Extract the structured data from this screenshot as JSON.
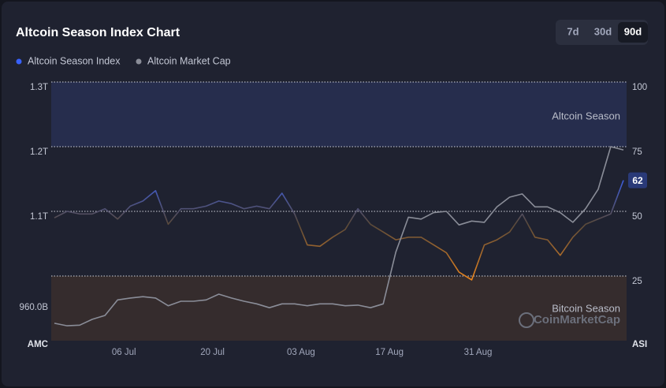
{
  "chart_data": {
    "type": "line",
    "title": "Altcoin Season Index Chart",
    "ranges": [
      "7d",
      "30d",
      "90d"
    ],
    "active_range": 2,
    "watermark": "CoinMarketCap",
    "y_axis_title": "AMC",
    "y2_axis_title": "ASI",
    "x": [
      0,
      2,
      4,
      6,
      8,
      10,
      12,
      14,
      16,
      18,
      20,
      22,
      24,
      26,
      28,
      30,
      32,
      34,
      36,
      38,
      40,
      42,
      44,
      46,
      48,
      50,
      52,
      54,
      56,
      58,
      60,
      62,
      64,
      66,
      68,
      70,
      72,
      74,
      76,
      78,
      80,
      82,
      84,
      86,
      88,
      90
    ],
    "xlim": [
      -0.5,
      90.5
    ],
    "xticks": [
      {
        "value": 11,
        "label": "06 Jul"
      },
      {
        "value": 25,
        "label": "20 Jul"
      },
      {
        "value": 39,
        "label": "03 Aug"
      },
      {
        "value": 53,
        "label": "17 Aug"
      },
      {
        "value": 67,
        "label": "31 Aug"
      }
    ],
    "ylim": [
      0.9,
      1.3
    ],
    "yticks": [
      {
        "value": 1.3,
        "label": "1.3T"
      },
      {
        "value": 1.2,
        "label": "1.2T"
      },
      {
        "value": 1.1,
        "label": "1.1T"
      },
      {
        "value": 0.96,
        "label": "960.0B"
      }
    ],
    "y2lim": [
      0,
      100
    ],
    "y2ticks": [
      100,
      75,
      50,
      25
    ],
    "bands": [
      {
        "label": "Altcoin Season",
        "from": 75,
        "to": 100,
        "color": "#262d4d"
      },
      {
        "label": "Bitcoin Season",
        "from": 0,
        "to": 25,
        "color": "#352c2d"
      }
    ],
    "series": [
      {
        "name": "Altcoin Season Index",
        "color": "#3861fb",
        "low_color": "#f68a1b",
        "axis": "y2",
        "values": [
          47.5,
          50,
          49,
          49,
          51,
          47,
          52,
          54,
          58,
          45,
          51,
          51,
          52,
          54,
          53,
          51,
          52,
          51,
          57,
          49,
          37,
          36.5,
          40,
          43,
          51,
          45,
          42,
          39,
          40,
          40,
          37,
          34,
          26.5,
          23.5,
          37,
          39,
          42,
          49,
          40,
          39,
          33,
          40,
          45,
          47,
          49,
          62
        ]
      },
      {
        "name": "Altcoin Market Cap",
        "color": "#8a8d98",
        "values": [
          0.927,
          0.923,
          0.924,
          0.933,
          0.939,
          0.963,
          0.966,
          0.968,
          0.966,
          0.954,
          0.961,
          0.961,
          0.963,
          0.972,
          0.966,
          0.961,
          0.957,
          0.951,
          0.957,
          0.957,
          0.954,
          0.957,
          0.957,
          0.954,
          0.955,
          0.951,
          0.957,
          1.037,
          1.091,
          1.088,
          1.098,
          1.1,
          1.079,
          1.085,
          1.083,
          1.107,
          1.122,
          1.127,
          1.107,
          1.107,
          1.098,
          1.083,
          1.104,
          1.134,
          1.2,
          1.195
        ]
      }
    ]
  }
}
